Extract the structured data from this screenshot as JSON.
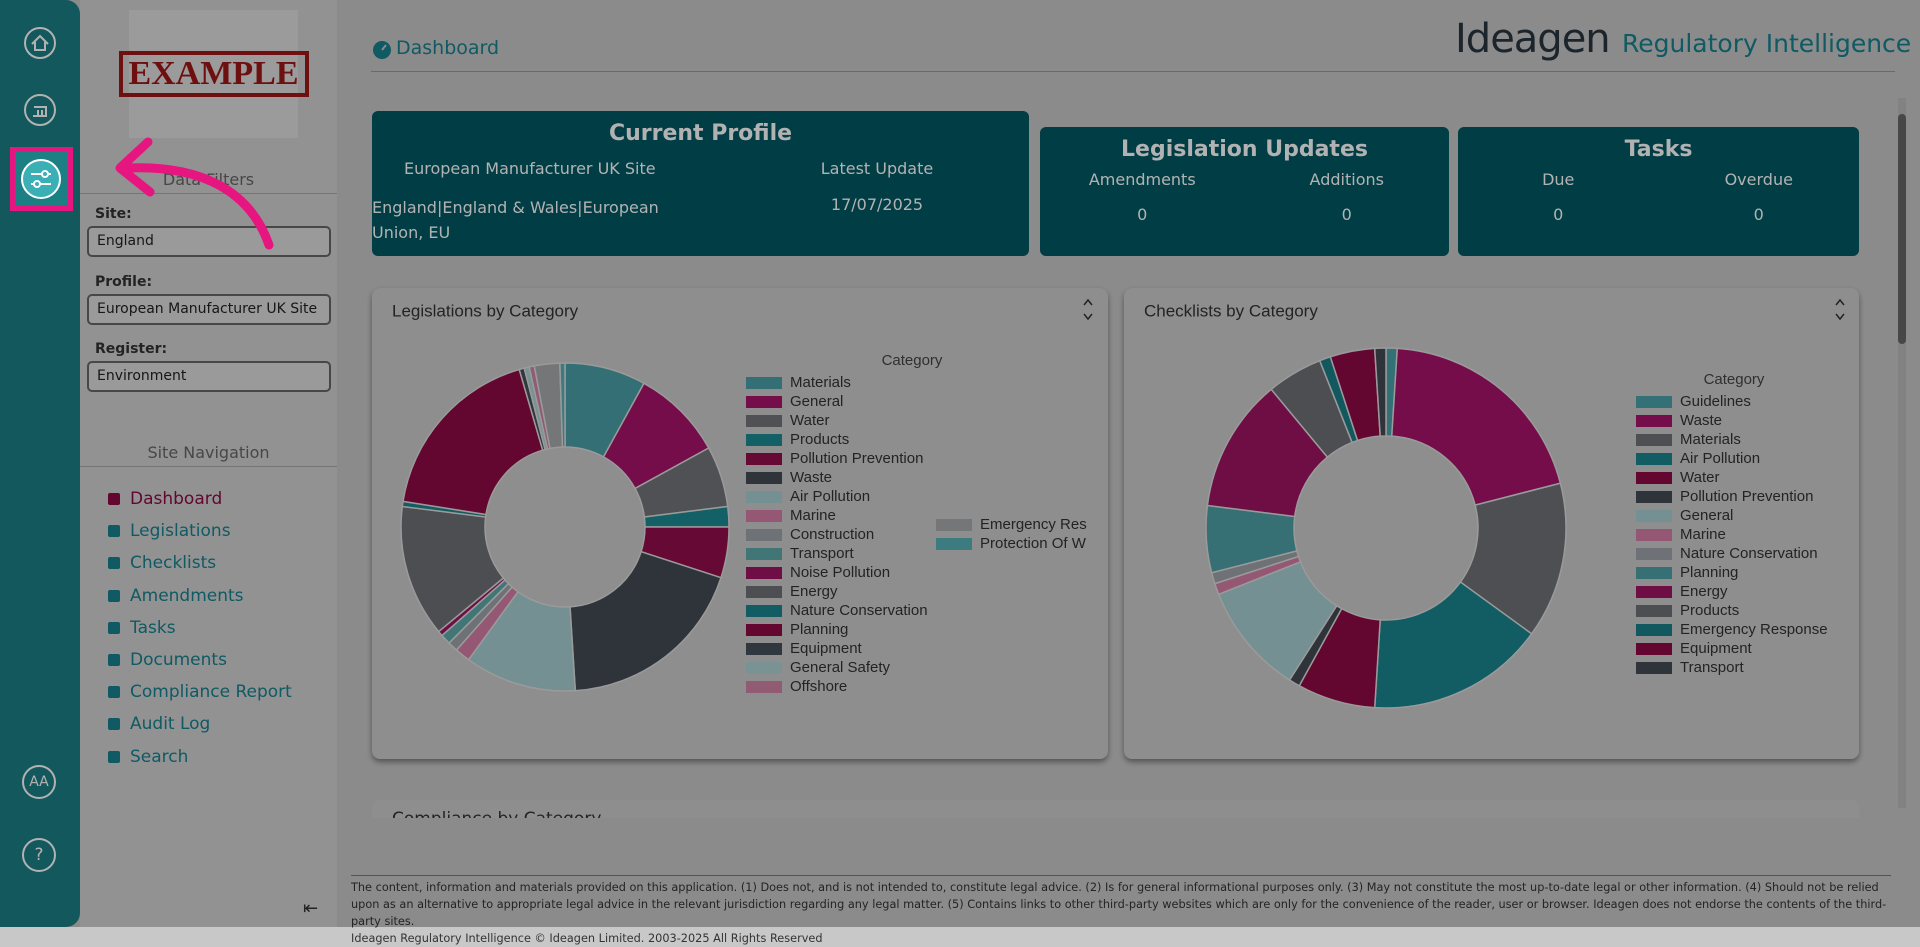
{
  "logo_text": "EXAMPLE",
  "rail": {
    "accessibility": "AA",
    "help": "?"
  },
  "sidebar": {
    "filters_title": "Data Filters",
    "site_label": "Site:",
    "site_value": "England",
    "profile_label": "Profile:",
    "profile_value": "European Manufacturer UK Site",
    "register_label": "Register:",
    "register_value": "Environment",
    "nav_title": "Site Navigation",
    "nav": [
      "Dashboard",
      "Legislations",
      "Checklists",
      "Amendments",
      "Tasks",
      "Documents",
      "Compliance Report",
      "Audit Log",
      "Search"
    ]
  },
  "header": {
    "title": "Dashboard",
    "brand": "Ideagen",
    "product": "Regulatory Intelligence"
  },
  "cards": {
    "profile": {
      "title": "Current Profile",
      "name": "European Manufacturer UK Site",
      "scope": "England|England & Wales|European Union, EU",
      "update_label": "Latest Update",
      "update_value": "17/07/2025"
    },
    "legislation": {
      "title": "Legislation Updates",
      "items": [
        {
          "label": "Amendments",
          "value": 0
        },
        {
          "label": "Additions",
          "value": 0
        }
      ]
    },
    "tasks": {
      "title": "Tasks",
      "items": [
        {
          "label": "Due",
          "value": 0
        },
        {
          "label": "Overdue",
          "value": 0
        }
      ]
    }
  },
  "chart_data": [
    {
      "type": "pie",
      "title": "Legislations by Category",
      "legend_title": "Category",
      "categories": [
        "Materials",
        "General",
        "Water",
        "Products",
        "Pollution Prevention",
        "Waste",
        "Air Pollution",
        "Marine",
        "Construction",
        "Transport",
        "Noise Pollution",
        "Energy",
        "Nature Conservation",
        "Planning",
        "Equipment",
        "General Safety",
        "Offshore",
        "Emergency Res",
        "Protection Of W"
      ],
      "values": [
        8,
        9,
        6,
        2,
        5,
        19,
        11,
        1.5,
        1,
        1,
        0.5,
        13,
        0.5,
        18,
        0.5,
        0.5,
        0.5,
        2.5,
        0.5
      ],
      "colors": [
        "#4a9fa6",
        "#a8136a",
        "#717479",
        "#1c8a94",
        "#940e4c",
        "#444b55",
        "#a6cfd3",
        "#d47fa6",
        "#9ea3a8",
        "#5ea9a9",
        "#a01464",
        "#6d7076",
        "#1b8590",
        "#8e0a45",
        "#46505a",
        "#aed1d4",
        "#d283a6",
        "#a7a9ad",
        "#56b1b8"
      ]
    },
    {
      "type": "pie",
      "title": "Checklists by Category",
      "legend_title": "Category",
      "categories": [
        "Guidelines",
        "Waste",
        "Materials",
        "Air Pollution",
        "Water",
        "Pollution Prevention",
        "General",
        "Marine",
        "Nature Conservation",
        "Planning",
        "Energy",
        "Products",
        "Emergency Response",
        "Equipment",
        "Transport"
      ],
      "values": [
        1,
        20,
        14,
        16,
        7,
        1,
        10,
        1,
        1,
        6,
        12,
        5,
        1,
        4,
        1
      ],
      "colors": [
        "#4aa3ab",
        "#a8136a",
        "#6f7277",
        "#1a8490",
        "#8e0a45",
        "#444b55",
        "#a6cfd3",
        "#d47fa6",
        "#9ea3a8",
        "#4ea0a6",
        "#a01464",
        "#6d7076",
        "#1b7f88",
        "#8e0a45",
        "#444b55"
      ]
    }
  ],
  "compliance_title": "Compliance by Category",
  "footer": {
    "disclaimer": "The content, information and materials provided on this application. (1) Does not, and is not intended to, constitute legal advice. (2) Is for general informational purposes only. (3) May not constitute the most up-to-date legal or other information. (4) Should not be relied upon as an alternative to appropriate legal advice in the relevant jurisdiction regarding any legal matter. (5) Contains links to other third-party websites which are only for the convenience of the reader, user or browser. Ideagen does not endorse the contents of the third-party sites.",
    "copyright": "Ideagen Regulatory Intelligence © Ideagen Limited. 2003-2025 All Rights Reserved"
  }
}
